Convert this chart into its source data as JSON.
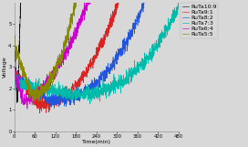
{
  "title": "",
  "xlabel": "Time(min)",
  "ylabel": "Voltage",
  "xlim": [
    0,
    480
  ],
  "ylim": [
    0,
    6
  ],
  "xticks": [
    0,
    60,
    120,
    180,
    240,
    300,
    360,
    420,
    480
  ],
  "ytick_vals": [
    0,
    1,
    2,
    3,
    4,
    5
  ],
  "series": [
    {
      "label": "RuTa10:9",
      "color": "#111111",
      "start_t": 0,
      "end_t": 22,
      "start_v": 4.5,
      "min_t": 8,
      "min_v": 1.4,
      "end_v": 8.0,
      "noise": 0.12,
      "n": 200,
      "exp": 1.2
    },
    {
      "label": "RuTa9:1",
      "color": "#dd2222",
      "start_t": 0,
      "end_t": 305,
      "start_v": 2.8,
      "min_t": 70,
      "min_v": 1.25,
      "end_v": 6.0,
      "noise": 0.13,
      "n": 900,
      "exp": 2.2
    },
    {
      "label": "RuTa8:2",
      "color": "#2255dd",
      "start_t": 0,
      "end_t": 380,
      "start_v": 2.5,
      "min_t": 100,
      "min_v": 1.45,
      "end_v": 6.0,
      "noise": 0.13,
      "n": 1000,
      "exp": 2.5
    },
    {
      "label": "RuTa7:3",
      "color": "#00bbaa",
      "start_t": 0,
      "end_t": 480,
      "start_v": 2.3,
      "min_t": 170,
      "min_v": 1.7,
      "end_v": 5.8,
      "noise": 0.14,
      "n": 1200,
      "exp": 2.5
    },
    {
      "label": "RuTa6:4",
      "color": "#cc00cc",
      "start_t": 0,
      "end_t": 225,
      "start_v": 2.8,
      "min_t": 25,
      "min_v": 1.45,
      "end_v": 6.5,
      "noise": 0.14,
      "n": 650,
      "exp": 1.8
    },
    {
      "label": "RuTa5:5",
      "color": "#888800",
      "start_t": 0,
      "end_t": 185,
      "start_v": 4.0,
      "min_t": 50,
      "min_v": 1.7,
      "end_v": 6.5,
      "noise": 0.15,
      "n": 550,
      "exp": 2.2
    }
  ],
  "legend_fontsize": 4.5,
  "axis_fontsize": 4.5,
  "tick_fontsize": 3.8,
  "figsize": [
    2.72,
    1.61
  ],
  "dpi": 100,
  "bg_color": "#d8d8d8"
}
